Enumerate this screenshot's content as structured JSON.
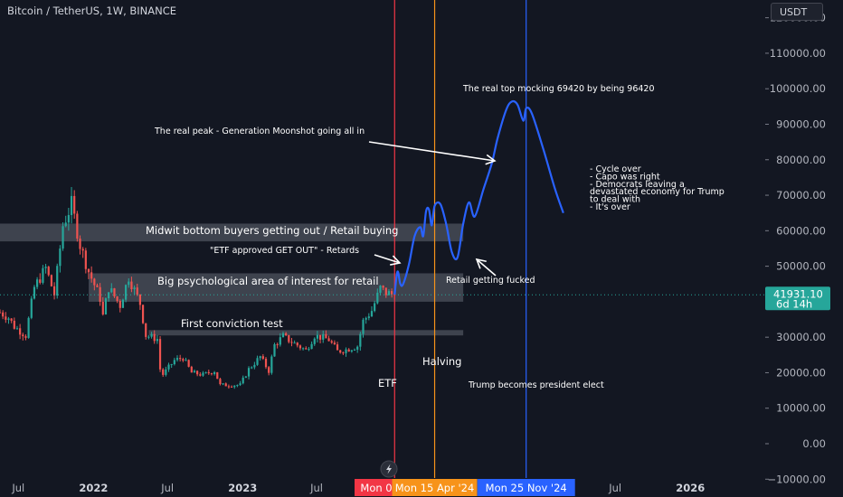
{
  "header": {
    "title": "Bitcoin / TetherUS, 1W, BINANCE",
    "currency_button": "USDT"
  },
  "price_tag": {
    "price": "41931.10",
    "countdown": "6d 14h"
  },
  "colors": {
    "background": "#131722",
    "up": "#26a69a",
    "down": "#ef5350",
    "projection": "#2962ff",
    "etf_line": "#f23645",
    "halving_line": "#f7931a",
    "election_line": "#2962ff",
    "zone": "rgba(135,140,150,0.38)"
  },
  "date_badges": [
    "Mon 0",
    "Mon 15 Apr '24",
    "Mon 25 Nov '24"
  ],
  "chart_data": {
    "type": "candlestick",
    "symbol": "BTCUSDT",
    "interval": "1W",
    "ylim": [
      -14000,
      125000
    ],
    "y_ticks": [
      -10000,
      0,
      10000,
      20000,
      30000,
      40000,
      50000,
      60000,
      70000,
      80000,
      90000,
      100000,
      110000,
      120000
    ],
    "y_tick_labels": [
      "−10000.00",
      "0.00",
      "10000.00",
      "20000.00",
      "30000.00",
      "40000.00",
      "50000.00",
      "60000.00",
      "70000.00",
      "80000.00",
      "90000.00",
      "100000.00",
      "110000.00",
      "120000.00"
    ],
    "x_range": [
      "2021-05-17",
      "2026-07-01"
    ],
    "x_ticks": [
      {
        "date": "2021-07-01",
        "label": "Jul",
        "bold": false
      },
      {
        "date": "2022-01-01",
        "label": "2022",
        "bold": true
      },
      {
        "date": "2022-07-01",
        "label": "Jul",
        "bold": false
      },
      {
        "date": "2023-01-01",
        "label": "2023",
        "bold": true
      },
      {
        "date": "2023-07-01",
        "label": "Jul",
        "bold": false
      },
      {
        "date": "2025-07-01",
        "label": "Jul",
        "bold": false
      },
      {
        "date": "2026-01-01",
        "label": "2026",
        "bold": true
      }
    ],
    "last_price": 41931.1,
    "price_path": [
      [
        "2021-05-17",
        37000
      ],
      [
        "2021-06-07",
        35500
      ],
      [
        "2021-06-21",
        33000
      ],
      [
        "2021-07-19",
        30500
      ],
      [
        "2021-08-09",
        44000
      ],
      [
        "2021-09-06",
        49500
      ],
      [
        "2021-09-27",
        42000
      ],
      [
        "2021-10-18",
        61500
      ],
      [
        "2021-11-08",
        67500
      ],
      [
        "2021-11-29",
        56000
      ],
      [
        "2021-12-20",
        48500
      ],
      [
        "2022-01-17",
        41000
      ],
      [
        "2022-01-24",
        36000
      ],
      [
        "2022-02-07",
        44000
      ],
      [
        "2022-03-07",
        39000
      ],
      [
        "2022-03-28",
        47000
      ],
      [
        "2022-04-25",
        39500
      ],
      [
        "2022-05-09",
        30500
      ],
      [
        "2022-06-06",
        29500
      ],
      [
        "2022-06-13",
        21000
      ],
      [
        "2022-06-20",
        19500
      ],
      [
        "2022-07-18",
        23500
      ],
      [
        "2022-08-08",
        24200
      ],
      [
        "2022-08-29",
        20000
      ],
      [
        "2022-09-26",
        19400
      ],
      [
        "2022-10-24",
        20500
      ],
      [
        "2022-11-07",
        16500
      ],
      [
        "2022-12-26",
        16550
      ],
      [
        "2023-01-16",
        21000
      ],
      [
        "2023-02-13",
        24500
      ],
      [
        "2023-03-06",
        20500
      ],
      [
        "2023-03-20",
        27800
      ],
      [
        "2023-04-10",
        30300
      ],
      [
        "2023-04-24",
        29200
      ],
      [
        "2023-06-05",
        26300
      ],
      [
        "2023-06-26",
        30500
      ],
      [
        "2023-07-31",
        29300
      ],
      [
        "2023-08-21",
        26000
      ],
      [
        "2023-09-11",
        26500
      ],
      [
        "2023-10-09",
        27500
      ],
      [
        "2023-10-23",
        34500
      ],
      [
        "2023-11-13",
        37500
      ],
      [
        "2023-12-04",
        43800
      ],
      [
        "2023-12-18",
        42500
      ],
      [
        "2024-01-08",
        41931.1
      ]
    ],
    "projection": [
      [
        "2024-01-08",
        42000
      ],
      [
        "2024-01-15",
        48500
      ],
      [
        "2024-01-22",
        45000
      ],
      [
        "2024-01-29",
        45000
      ],
      [
        "2024-02-12",
        50500
      ],
      [
        "2024-02-26",
        58500
      ],
      [
        "2024-03-11",
        61000
      ],
      [
        "2024-03-18",
        58500
      ],
      [
        "2024-03-25",
        65500
      ],
      [
        "2024-04-01",
        66000
      ],
      [
        "2024-04-08",
        61500
      ],
      [
        "2024-04-15",
        67000
      ],
      [
        "2024-04-29",
        67500
      ],
      [
        "2024-05-13",
        62000
      ],
      [
        "2024-05-27",
        54000
      ],
      [
        "2024-06-10",
        52500
      ],
      [
        "2024-06-24",
        62000
      ],
      [
        "2024-07-08",
        68000
      ],
      [
        "2024-07-22",
        64000
      ],
      [
        "2024-08-12",
        71500
      ],
      [
        "2024-09-02",
        79000
      ],
      [
        "2024-09-16",
        86000
      ],
      [
        "2024-10-07",
        94000
      ],
      [
        "2024-10-21",
        96400
      ],
      [
        "2024-11-04",
        95500
      ],
      [
        "2024-11-18",
        91000
      ],
      [
        "2024-11-25",
        94500
      ],
      [
        "2024-12-09",
        93000
      ],
      [
        "2025-01-06",
        83000
      ],
      [
        "2025-02-03",
        72000
      ],
      [
        "2025-02-24",
        65000
      ]
    ],
    "events": [
      {
        "date": "2024-01-08",
        "name": "ETF",
        "color": "#f23645"
      },
      {
        "date": "2024-04-15",
        "name": "Halving",
        "color": "#f7931a"
      },
      {
        "date": "2024-11-25",
        "name": "Trump becomes president elect",
        "color": "#2962ff"
      }
    ],
    "zones": [
      {
        "from": "2021-05-17",
        "to": "2024-06-24",
        "low": 57000,
        "high": 62000,
        "label": "Midwit bottom buyers getting out / Retail buying"
      },
      {
        "from": "2021-12-20",
        "to": "2024-06-24",
        "low": 40000,
        "high": 48000,
        "label": "Big psychological area of interest for retail"
      },
      {
        "from": "2022-05-16",
        "to": "2024-06-24",
        "low": 30500,
        "high": 32000,
        "label": "First conviction test"
      }
    ],
    "annotations": [
      {
        "text": "The real top mocking 69420 by being 96420"
      },
      {
        "text": "The real peak - Generation Moonshot going all in"
      },
      {
        "text": "\"ETF approved GET OUT\" - Retards"
      },
      {
        "text": "Retail getting fucked"
      },
      {
        "lines": [
          "- Cycle over",
          "- Capo was right",
          "- Democrats leaving a",
          "devastated economy for Trump",
          "to deal with",
          "- It's over"
        ]
      }
    ]
  }
}
